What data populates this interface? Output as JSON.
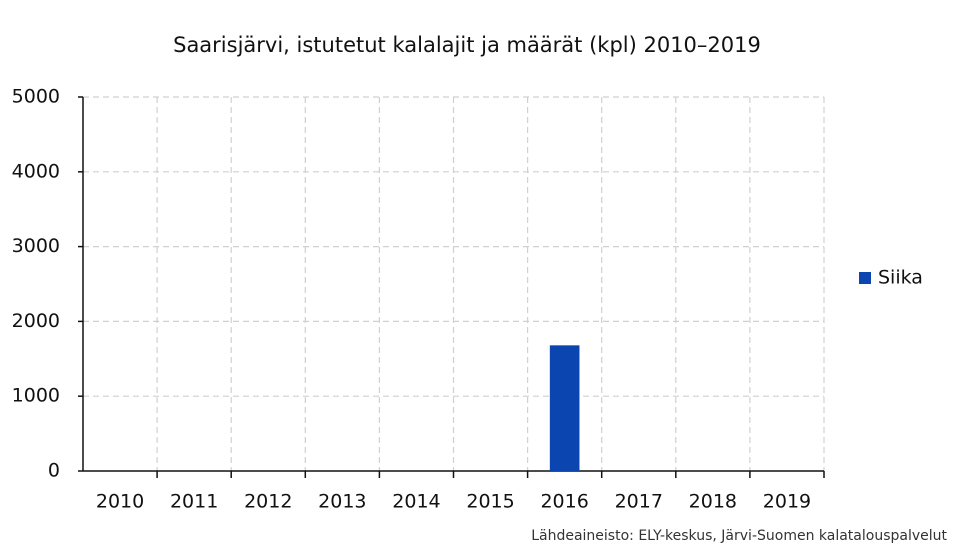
{
  "chart_data": {
    "type": "bar",
    "title": "Saarisjärvi, istutetut kalalajit ja määrät (kpl) 2010–2019",
    "categories": [
      "2010",
      "2011",
      "2012",
      "2013",
      "2014",
      "2015",
      "2016",
      "2017",
      "2018",
      "2019"
    ],
    "series": [
      {
        "name": "Siika",
        "color": "#0b45b0",
        "values": [
          0,
          0,
          0,
          0,
          0,
          0,
          1680,
          0,
          0,
          0
        ]
      }
    ],
    "ylim": [
      0,
      5000
    ],
    "yticks": [
      0,
      1000,
      2000,
      3000,
      4000,
      5000
    ],
    "grid": true,
    "legend": "right",
    "source": "Lähdeaineisto: ELY-keskus, Järvi-Suomen kalatalouspalvelut"
  }
}
